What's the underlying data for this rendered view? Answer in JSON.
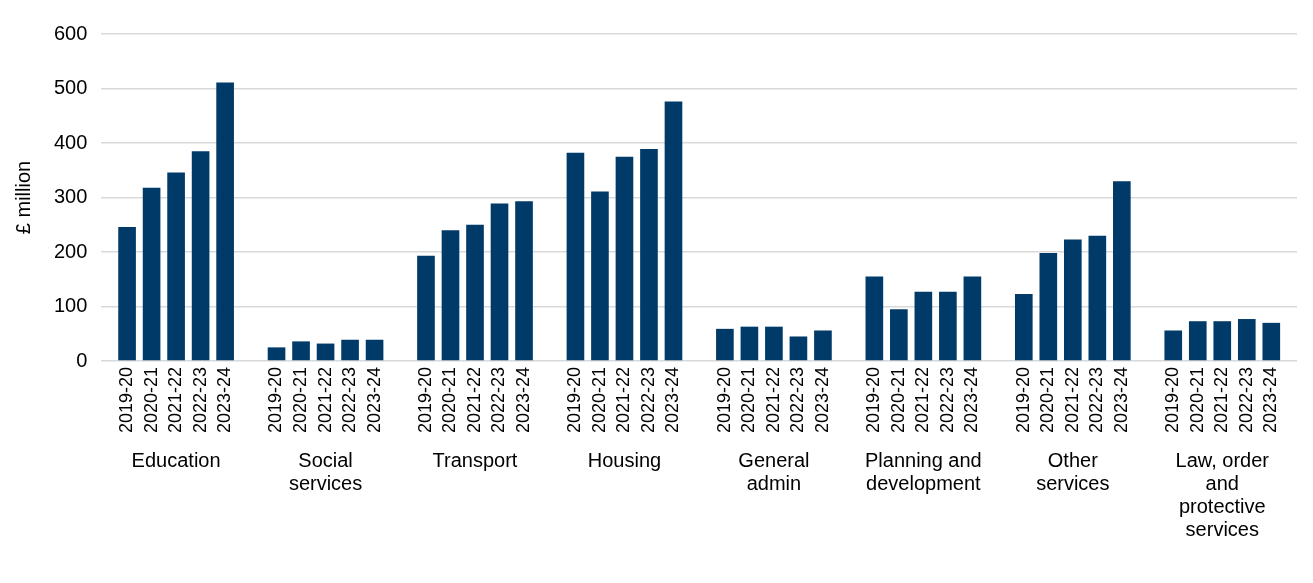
{
  "chart_data": {
    "type": "bar",
    "ylabel": "£ million",
    "categories": [
      "Education",
      "Social services",
      "Transport",
      "Housing",
      "General admin",
      "Planning and development",
      "Other services",
      "Law, order and protective services"
    ],
    "series": [
      {
        "name": "2019-20",
        "color": "#003a68",
        "values": [
          246,
          25,
          193,
          382,
          59,
          155,
          123,
          56
        ]
      },
      {
        "name": "2020-21",
        "color": "#003a68",
        "values": [
          318,
          36,
          240,
          311,
          63,
          95,
          198,
          73
        ]
      },
      {
        "name": "2021-22",
        "color": "#003a68",
        "values": [
          346,
          32,
          250,
          375,
          63,
          127,
          223,
          73
        ]
      },
      {
        "name": "2022-23",
        "color": "#003a68",
        "values": [
          385,
          39,
          289,
          389,
          45,
          127,
          230,
          77
        ]
      },
      {
        "name": "2023-24",
        "color": "#003a68",
        "values": [
          511,
          39,
          293,
          476,
          56,
          155,
          330,
          70
        ]
      }
    ],
    "ylim": [
      0,
      600
    ],
    "yticks": [
      0,
      100,
      200,
      300,
      400,
      500,
      600
    ],
    "grid": "y",
    "legend": false
  }
}
